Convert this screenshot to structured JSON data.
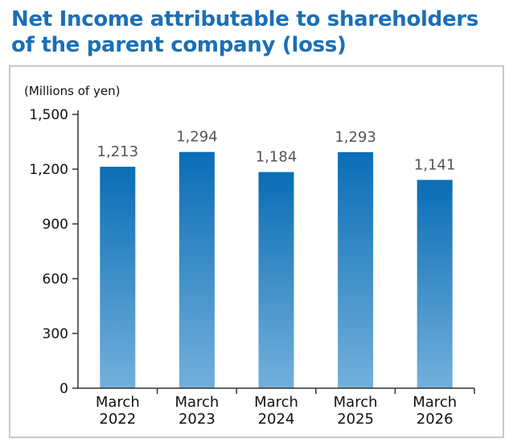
{
  "title": "Net Income attributable to shareholders of the parent company (loss)",
  "chart_data": {
    "type": "bar",
    "unit_label": "(Millions of yen)",
    "categories": [
      [
        "March",
        "2022"
      ],
      [
        "March",
        "2023"
      ],
      [
        "March",
        "2024"
      ],
      [
        "March",
        "2025"
      ],
      [
        "March",
        "2026"
      ]
    ],
    "values": [
      1213,
      1294,
      1184,
      1293,
      1141
    ],
    "value_labels": [
      "1,213",
      "1,294",
      "1,184",
      "1,293",
      "1,141"
    ],
    "ylim": [
      0,
      1500
    ],
    "yticks": [
      0,
      300,
      600,
      900,
      1200,
      1500
    ],
    "ytick_labels": [
      "0",
      "300",
      "600",
      "900",
      "1,200",
      "1,500"
    ],
    "grid": false,
    "bar_gradient": [
      "#0a6db5",
      "#72b0dc"
    ]
  }
}
